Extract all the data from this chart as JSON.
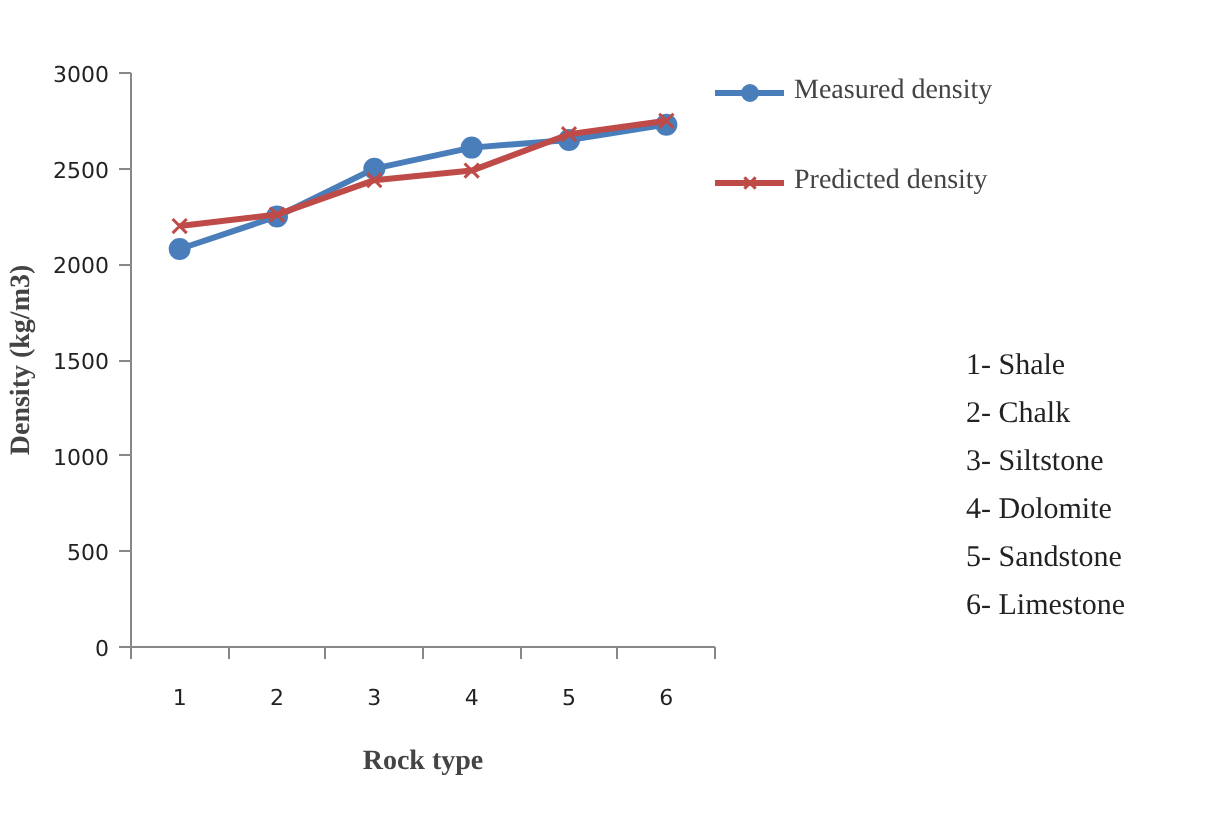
{
  "chart_data": {
    "type": "line",
    "xlabel": "Rock type",
    "ylabel": "Density (kg/m3)",
    "categories": [
      "1",
      "2",
      "3",
      "4",
      "5",
      "6"
    ],
    "series": [
      {
        "name": "Measured density",
        "color": "#4a7ebb",
        "marker": "circle",
        "values": [
          2080,
          2250,
          2500,
          2610,
          2650,
          2730
        ]
      },
      {
        "name": "Predicted density",
        "color": "#be4b48",
        "marker": "cross",
        "values": [
          2200,
          2260,
          2440,
          2490,
          2680,
          2750
        ]
      }
    ],
    "ylim": [
      0,
      3000
    ],
    "yticks": [
      0,
      500,
      1000,
      1500,
      2000,
      2500,
      3000
    ],
    "grid": false,
    "legend": "right",
    "annotations": [
      "1- Shale",
      "2- Chalk",
      "3- Siltstone",
      "4- Dolomite",
      "5- Sandstone",
      "6- Limestone"
    ]
  }
}
